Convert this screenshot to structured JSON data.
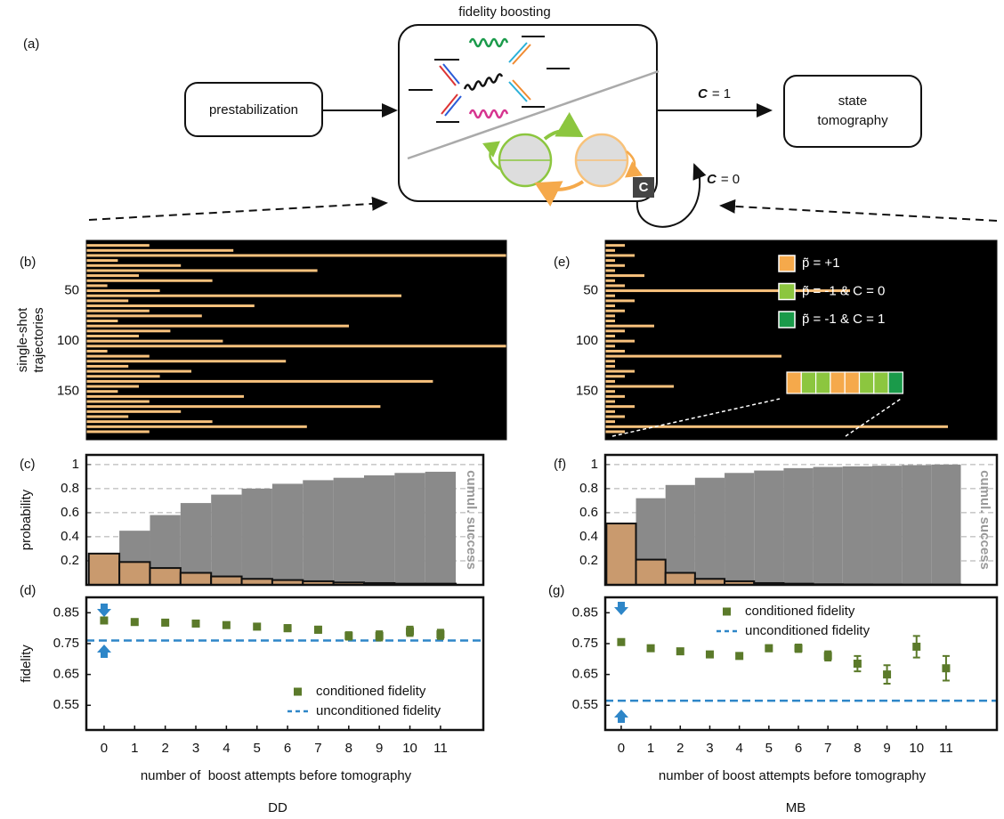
{
  "panel_labels": [
    "(a)",
    "(b)",
    "(c)",
    "(d)",
    "(e)",
    "(f)",
    "(g)"
  ],
  "diagram": {
    "title": "fidelity boosting",
    "start": "prestabilization",
    "end": [
      "state",
      "tomography"
    ],
    "exit_label": {
      "symbol": "C",
      "text": "= 1"
    },
    "loop_label": {
      "symbol": "C",
      "text": "= 0"
    },
    "badge": "C"
  },
  "captions": [
    "DD",
    "MB"
  ],
  "chart_data": [
    {
      "type": "raster",
      "ylabel": [
        "single-shot",
        "trajectories"
      ],
      "color": "#f9c27d",
      "yinvert": true,
      "y": [
        5,
        10,
        15,
        20,
        25,
        30,
        35,
        40,
        45,
        50,
        55,
        60,
        65,
        70,
        75,
        80,
        85,
        90,
        95,
        100,
        105,
        110,
        115,
        120,
        125,
        130,
        135,
        140,
        145,
        150,
        155,
        160,
        165,
        170,
        175,
        180,
        185,
        190
      ],
      "values": [
        6,
        14,
        40,
        3,
        9,
        22,
        5,
        12,
        2,
        7,
        30,
        4,
        16,
        6,
        11,
        3,
        25,
        8,
        5,
        13,
        40,
        2,
        6,
        19,
        4,
        10,
        7,
        33,
        5,
        3,
        15,
        6,
        28,
        9,
        4,
        12,
        21,
        6
      ],
      "xlim": [
        0,
        40
      ],
      "ylim": [
        0,
        198
      ],
      "yticks": [
        50,
        100,
        150
      ]
    },
    {
      "type": "bar",
      "ylabel": "probability",
      "grid": true,
      "x": [
        0,
        1,
        2,
        3,
        4,
        5,
        6,
        7,
        8,
        9,
        10,
        11
      ],
      "xlim": [
        -0.58,
        12.4
      ],
      "ylim": [
        0,
        1.08
      ],
      "yticks": [
        0.2,
        0.4,
        0.6,
        0.8,
        1
      ],
      "series": [
        {
          "name": "cumul. success",
          "color": "#8a8a8a",
          "values": [
            0.26,
            0.45,
            0.58,
            0.68,
            0.75,
            0.8,
            0.84,
            0.87,
            0.89,
            0.91,
            0.93,
            0.94
          ]
        },
        {
          "color": "#c99a6e",
          "values": [
            0.26,
            0.19,
            0.14,
            0.1,
            0.07,
            0.05,
            0.04,
            0.03,
            0.02,
            0.015,
            0.01,
            0.01
          ]
        }
      ]
    },
    {
      "type": "errorbar",
      "ylabel": "fidelity",
      "xlabel": "number of  boost attempts before tomography",
      "legend": "lower right",
      "x": [
        0,
        1,
        2,
        3,
        4,
        5,
        6,
        7,
        8,
        9,
        10,
        11
      ],
      "xticks": [
        0,
        1,
        2,
        3,
        4,
        5,
        6,
        7,
        8,
        9,
        10,
        11
      ],
      "xlim": [
        -0.58,
        12.4
      ],
      "ylim": [
        0.47,
        0.9
      ],
      "yticks": [
        0.55,
        0.65,
        0.75,
        0.85
      ],
      "series": [
        {
          "name": "conditioned fidelity",
          "color": "#5b7a2a",
          "values": [
            0.825,
            0.82,
            0.818,
            0.815,
            0.81,
            0.805,
            0.8,
            0.795,
            0.775,
            0.775,
            0.79,
            0.78
          ],
          "errors": [
            0.005,
            0.005,
            0.005,
            0.006,
            0.006,
            0.008,
            0.01,
            0.01,
            0.012,
            0.015,
            0.015,
            0.015
          ]
        }
      ],
      "reference": {
        "name": "unconditioned fidelity",
        "value": 0.76,
        "color": "#2e86c8"
      }
    },
    {
      "type": "raster",
      "color": "#f9c27d",
      "yinvert": true,
      "y": [
        5,
        10,
        15,
        20,
        25,
        30,
        35,
        40,
        45,
        50,
        55,
        60,
        65,
        70,
        75,
        80,
        85,
        90,
        95,
        100,
        105,
        110,
        115,
        120,
        125,
        130,
        135,
        140,
        145,
        150,
        155,
        160,
        165,
        170,
        175,
        180,
        185,
        190
      ],
      "values": [
        2,
        1,
        3,
        1,
        2,
        1,
        4,
        1,
        2,
        25,
        1,
        3,
        1,
        2,
        1,
        1,
        5,
        2,
        1,
        3,
        1,
        2,
        18,
        1,
        1,
        3,
        2,
        1,
        7,
        1,
        2,
        1,
        3,
        1,
        2,
        1,
        35,
        2
      ],
      "xlim": [
        0,
        40
      ],
      "ylim": [
        0,
        198
      ],
      "yticks": [
        50,
        100,
        150
      ],
      "legend_entries": [
        {
          "name": "p̃ = +1",
          "color": "#f5a94b"
        },
        {
          "name": "p̃ = -1 & C = 0",
          "color": "#8cc63f"
        },
        {
          "name": "p̃ = -1 & C = 1",
          "color": "#1a9a4a"
        }
      ],
      "inset_colors": [
        "#f5a94b",
        "#8cc63f",
        "#8cc63f",
        "#f5a94b",
        "#f5a94b",
        "#8cc63f",
        "#8cc63f",
        "#1a9a4a"
      ]
    },
    {
      "type": "bar",
      "grid": true,
      "x": [
        0,
        1,
        2,
        3,
        4,
        5,
        6,
        7,
        8,
        9,
        10,
        11
      ],
      "xlim": [
        -0.54,
        12.72
      ],
      "ylim": [
        0,
        1.08
      ],
      "yticks": [
        0.2,
        0.4,
        0.6,
        0.8,
        1
      ],
      "series": [
        {
          "name": "cumul. success",
          "color": "#8a8a8a",
          "values": [
            0.51,
            0.72,
            0.83,
            0.89,
            0.93,
            0.95,
            0.97,
            0.98,
            0.985,
            0.99,
            0.995,
            1
          ]
        },
        {
          "color": "#c99a6e",
          "values": [
            0.51,
            0.21,
            0.1,
            0.05,
            0.03,
            0.015,
            0.01,
            0.005,
            0.004,
            0.003,
            0.002,
            0.002
          ]
        }
      ]
    },
    {
      "type": "errorbar",
      "xlabel": "number of boost attempts before tomography",
      "legend": "upper center",
      "x": [
        0,
        1,
        2,
        3,
        4,
        5,
        6,
        7,
        8,
        9,
        10,
        11
      ],
      "xticks": [
        0,
        1,
        2,
        3,
        4,
        5,
        6,
        7,
        8,
        9,
        10,
        11
      ],
      "xlim": [
        -0.54,
        12.72
      ],
      "ylim": [
        0.47,
        0.9
      ],
      "yticks": [
        0.55,
        0.65,
        0.75,
        0.85
      ],
      "series": [
        {
          "name": "conditioned fidelity",
          "color": "#5b7a2a",
          "values": [
            0.755,
            0.735,
            0.725,
            0.715,
            0.71,
            0.735,
            0.735,
            0.71,
            0.685,
            0.65,
            0.74,
            0.67
          ],
          "errors": [
            0.005,
            0.005,
            0.005,
            0.008,
            0.008,
            0.01,
            0.012,
            0.015,
            0.025,
            0.03,
            0.035,
            0.04
          ]
        }
      ],
      "reference": {
        "name": "unconditioned fidelity",
        "value": 0.565,
        "color": "#2e86c8"
      }
    }
  ]
}
